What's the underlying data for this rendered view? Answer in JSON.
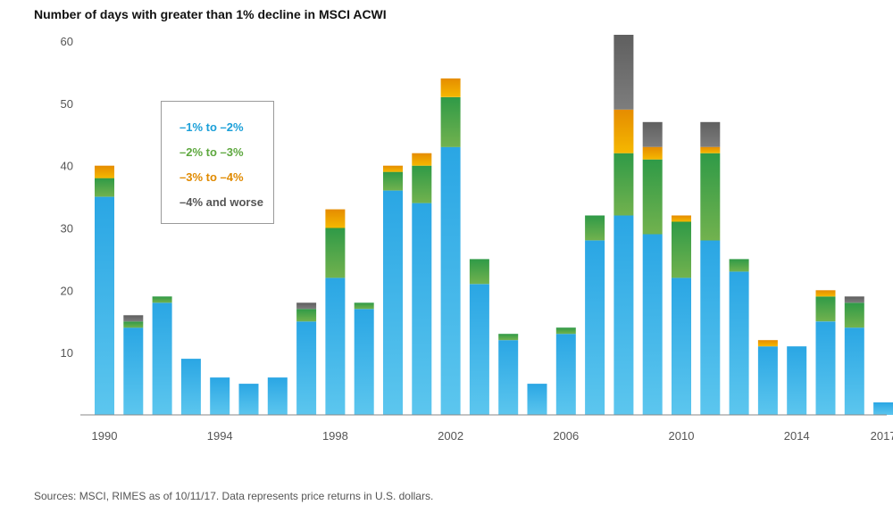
{
  "chart_data": {
    "type": "bar",
    "stacked": true,
    "title": "Number of days with greater than 1% decline in MSCI ACWI",
    "xlabel": "",
    "ylabel": "",
    "ylim": [
      0,
      60
    ],
    "yticks": [
      10,
      20,
      30,
      40,
      50,
      60
    ],
    "xtick_labels": [
      "1990",
      "1994",
      "1998",
      "2002",
      "2006",
      "2010",
      "2014",
      "2017"
    ],
    "categories": [
      "1990",
      "1991",
      "1992",
      "1993",
      "1994",
      "1995",
      "1996",
      "1997",
      "1998",
      "1999",
      "2000",
      "2001",
      "2002",
      "2003",
      "2004",
      "2005",
      "2006",
      "2007",
      "2008",
      "2009",
      "2010",
      "2011",
      "2012",
      "2013",
      "2014",
      "2015",
      "2016",
      "2017"
    ],
    "series": [
      {
        "name": "–1% to –2%",
        "color": "#55bfea",
        "values": [
          35,
          14,
          18,
          9,
          6,
          5,
          6,
          15,
          22,
          17,
          36,
          34,
          43,
          21,
          12,
          5,
          13,
          28,
          32,
          29,
          22,
          28,
          23,
          11,
          11,
          15,
          14,
          2
        ]
      },
      {
        "name": "–2% to –3%",
        "color": "#6aaa4e",
        "values": [
          3,
          1,
          1,
          0,
          0,
          0,
          0,
          2,
          8,
          1,
          3,
          6,
          8,
          4,
          1,
          0,
          1,
          4,
          10,
          12,
          9,
          14,
          2,
          0,
          0,
          4,
          4,
          0
        ]
      },
      {
        "name": "–3% to –4%",
        "color": "#f0a100",
        "values": [
          2,
          0,
          0,
          0,
          0,
          0,
          0,
          0,
          3,
          0,
          1,
          2,
          3,
          0,
          0,
          0,
          0,
          0,
          7,
          2,
          1,
          1,
          0,
          1,
          0,
          1,
          0,
          0
        ]
      },
      {
        "name": "–4% and worse",
        "color": "#6e6e6e",
        "values": [
          0,
          1,
          0,
          0,
          0,
          0,
          0,
          1,
          0,
          0,
          0,
          0,
          0,
          0,
          0,
          0,
          0,
          0,
          12,
          4,
          0,
          4,
          0,
          0,
          0,
          0,
          1,
          0
        ]
      }
    ]
  },
  "legend": {
    "items": [
      {
        "label": "–1% to –2%",
        "color": "#1a9fd8"
      },
      {
        "label": "–2% to –3%",
        "color": "#5ea83f"
      },
      {
        "label": "–3% to –4%",
        "color": "#e08a00"
      },
      {
        "label": "–4% and worse",
        "color": "#555555"
      }
    ]
  },
  "source": "Sources: MSCI, RIMES as of 10/11/17. Data represents price returns in U.S. dollars."
}
